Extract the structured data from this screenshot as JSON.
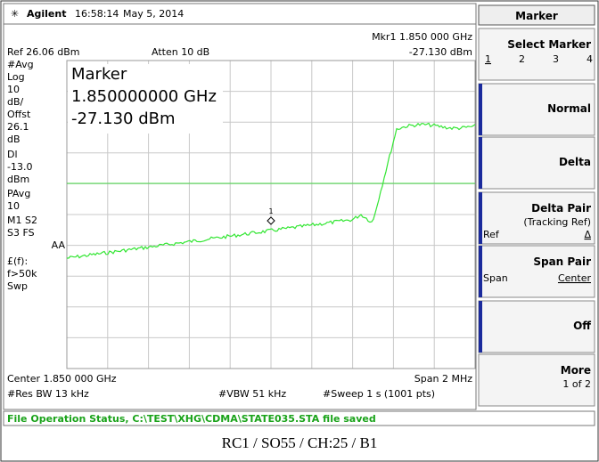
{
  "header": {
    "brand": "Agilent",
    "time": "16:58:14",
    "date": "May 5, 2014"
  },
  "top": {
    "ref": "Ref 26.06 dBm",
    "atten": "Atten 10 dB",
    "marker_label": "Mkr1 1.850 000 GHz",
    "marker_level": "-27.130 dBm"
  },
  "left_annotations": [
    "#Avg",
    "Log",
    "10",
    "dB/",
    "Offst",
    "26.1",
    "dB",
    "Dl",
    "-13.0",
    "dBm",
    "PAvg",
    "10",
    "M1  S2",
    "S3  FS",
    "AA",
    "£(f):",
    "f>50k",
    "Swp"
  ],
  "readout": {
    "title": "Marker",
    "frequency": "1.850000000 GHz",
    "level": "-27.130 dBm",
    "marker_number": "1"
  },
  "footer": {
    "center": "Center 1.850 000 GHz",
    "span": "Span 2 MHz",
    "rbw": "#Res BW 13 kHz",
    "vbw": "#VBW 51 kHz",
    "sweep": "#Sweep 1 s (1001 pts)"
  },
  "status": "File Operation Status, C:\\TEST\\XHG\\CDMA\\STATE035.STA file saved",
  "menu": {
    "title": "Marker",
    "keys": [
      {
        "label": "Select Marker",
        "options": [
          "1",
          "2",
          "3",
          "4"
        ]
      },
      {
        "label": "Normal"
      },
      {
        "label": "Delta"
      },
      {
        "label": "Delta Pair",
        "sub": "(Tracking Ref)",
        "left": "Ref",
        "right": "Δ"
      },
      {
        "label": "Span Pair",
        "left": "Span",
        "right": "Center"
      },
      {
        "label": "Off"
      },
      {
        "label": "More",
        "sub": "1 of 2"
      }
    ]
  },
  "caption": "RC1 / SO55 / CH:25 / B1"
}
